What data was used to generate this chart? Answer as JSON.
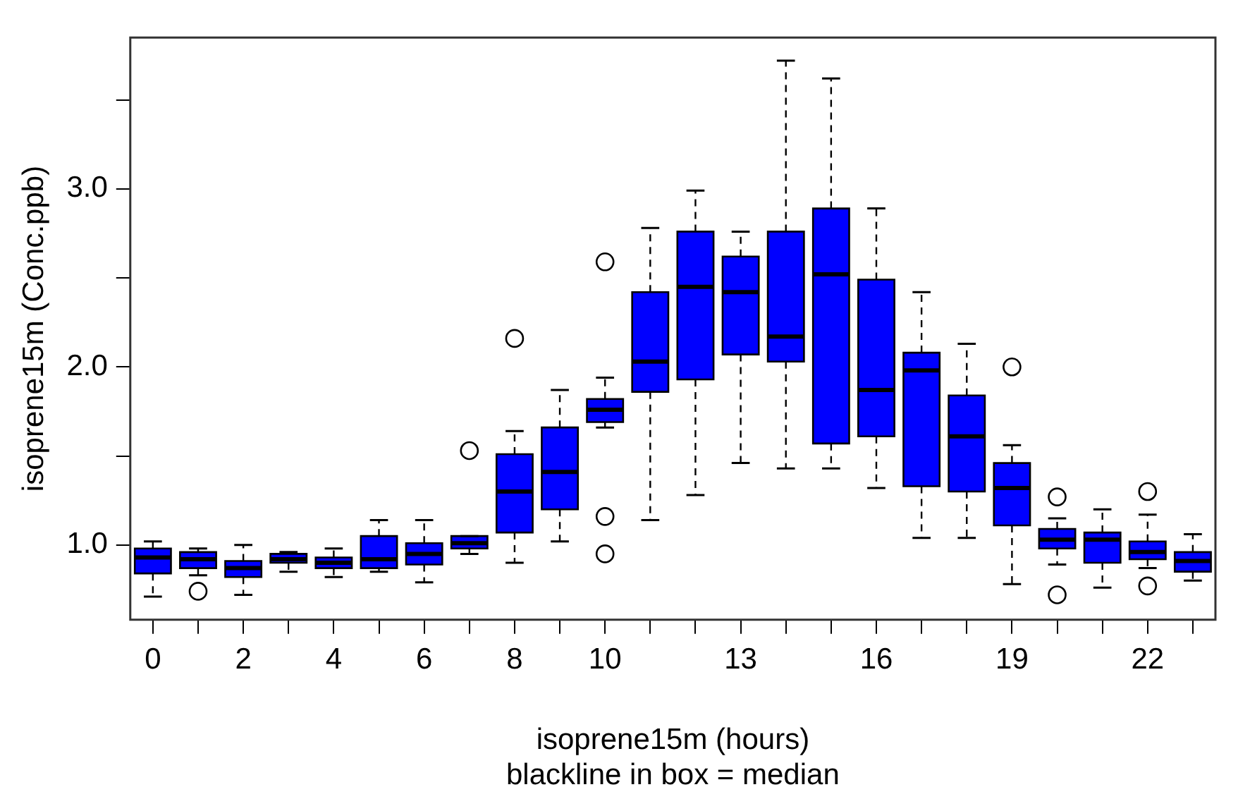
{
  "chart_data": {
    "type": "box",
    "xlabel": "isoprene15m (hours)",
    "ylabel": "isoprene15m (Conc.ppb)",
    "annotations": [
      "blackline in box = median"
    ],
    "categories": [
      "0",
      null,
      "2",
      null,
      "4",
      null,
      "6",
      null,
      "8",
      null,
      "10",
      null,
      null,
      "13",
      null,
      null,
      "16",
      null,
      null,
      "19",
      null,
      null,
      "22",
      null
    ],
    "color": "#0000ff",
    "ylim": [
      0.58,
      3.85
    ],
    "yticks": [
      {
        "value": 1,
        "label": "1.0"
      },
      {
        "value": 1.5,
        "label": null
      },
      {
        "value": 2,
        "label": "2.0"
      },
      {
        "value": 2.5,
        "label": null
      },
      {
        "value": 3,
        "label": "3.0"
      },
      {
        "value": 3.5,
        "label": null
      }
    ],
    "grid": false,
    "legend": false,
    "boxes": [
      {
        "low": 0.71,
        "q1": 0.84,
        "median": 0.93,
        "q3": 0.98,
        "high": 1.02
      },
      {
        "low": 0.83,
        "q1": 0.87,
        "median": 0.92,
        "q3": 0.96,
        "high": 0.98,
        "outliers": [
          0.74
        ]
      },
      {
        "low": 0.72,
        "q1": 0.82,
        "median": 0.87,
        "q3": 0.91,
        "high": 1.0
      },
      {
        "low": 0.85,
        "q1": 0.9,
        "median": 0.92,
        "q3": 0.95,
        "high": 0.96
      },
      {
        "low": 0.82,
        "q1": 0.87,
        "median": 0.9,
        "q3": 0.93,
        "high": 0.98
      },
      {
        "low": 0.85,
        "q1": 0.87,
        "median": 0.92,
        "q3": 1.05,
        "high": 1.14
      },
      {
        "low": 0.79,
        "q1": 0.89,
        "median": 0.95,
        "q3": 1.01,
        "high": 1.14
      },
      {
        "low": 0.95,
        "q1": 0.98,
        "median": 1.01,
        "q3": 1.05,
        "high": 1.05,
        "outliers": [
          1.53
        ]
      },
      {
        "low": 0.9,
        "q1": 1.07,
        "median": 1.3,
        "q3": 1.51,
        "high": 1.64,
        "outliers": [
          2.16
        ]
      },
      {
        "low": 1.02,
        "q1": 1.2,
        "median": 1.41,
        "q3": 1.66,
        "high": 1.87
      },
      {
        "low": 1.66,
        "q1": 1.69,
        "median": 1.76,
        "q3": 1.82,
        "high": 1.94,
        "outliers": [
          2.59,
          1.16,
          0.95
        ]
      },
      {
        "low": 1.14,
        "q1": 1.86,
        "median": 2.03,
        "q3": 2.42,
        "high": 2.78
      },
      {
        "low": 1.28,
        "q1": 1.93,
        "median": 2.45,
        "q3": 2.76,
        "high": 2.99
      },
      {
        "low": 1.46,
        "q1": 2.07,
        "median": 2.42,
        "q3": 2.62,
        "high": 2.76
      },
      {
        "low": 1.43,
        "q1": 2.03,
        "median": 2.17,
        "q3": 2.76,
        "high": 3.72
      },
      {
        "low": 1.43,
        "q1": 1.57,
        "median": 2.52,
        "q3": 2.89,
        "high": 3.62
      },
      {
        "low": 1.32,
        "q1": 1.61,
        "median": 1.87,
        "q3": 2.49,
        "high": 2.89
      },
      {
        "low": 1.04,
        "q1": 1.33,
        "median": 1.98,
        "q3": 2.08,
        "high": 2.42
      },
      {
        "low": 1.04,
        "q1": 1.3,
        "median": 1.61,
        "q3": 1.84,
        "high": 2.13
      },
      {
        "low": 0.78,
        "q1": 1.11,
        "median": 1.32,
        "q3": 1.46,
        "high": 1.56,
        "outliers": [
          2.0
        ]
      },
      {
        "low": 0.89,
        "q1": 0.98,
        "median": 1.03,
        "q3": 1.09,
        "high": 1.15,
        "outliers": [
          1.27,
          0.72
        ]
      },
      {
        "low": 0.76,
        "q1": 0.9,
        "median": 1.03,
        "q3": 1.07,
        "high": 1.2
      },
      {
        "low": 0.87,
        "q1": 0.92,
        "median": 0.96,
        "q3": 1.02,
        "high": 1.17,
        "outliers": [
          1.3,
          0.77
        ]
      },
      {
        "low": 0.8,
        "q1": 0.85,
        "median": 0.91,
        "q3": 0.96,
        "high": 1.06
      }
    ]
  }
}
